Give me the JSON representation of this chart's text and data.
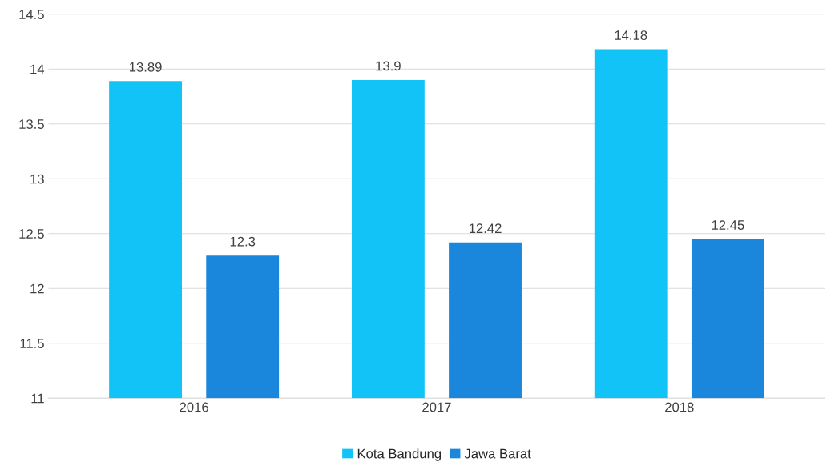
{
  "chart_data": {
    "type": "bar",
    "categories": [
      "2016",
      "2017",
      "2018"
    ],
    "series": [
      {
        "name": "Kota Bandung",
        "color": "#12c3f7",
        "values": [
          13.89,
          13.9,
          14.18
        ]
      },
      {
        "name": "Jawa Barat",
        "color": "#1a86dc",
        "values": [
          12.3,
          12.42,
          12.45
        ]
      }
    ],
    "ylim": [
      11,
      14.5
    ],
    "yticks": [
      11,
      11.5,
      12,
      12.5,
      13,
      13.5,
      14,
      14.5
    ],
    "grid": "y",
    "legend": "bottom",
    "data_labels": true
  }
}
